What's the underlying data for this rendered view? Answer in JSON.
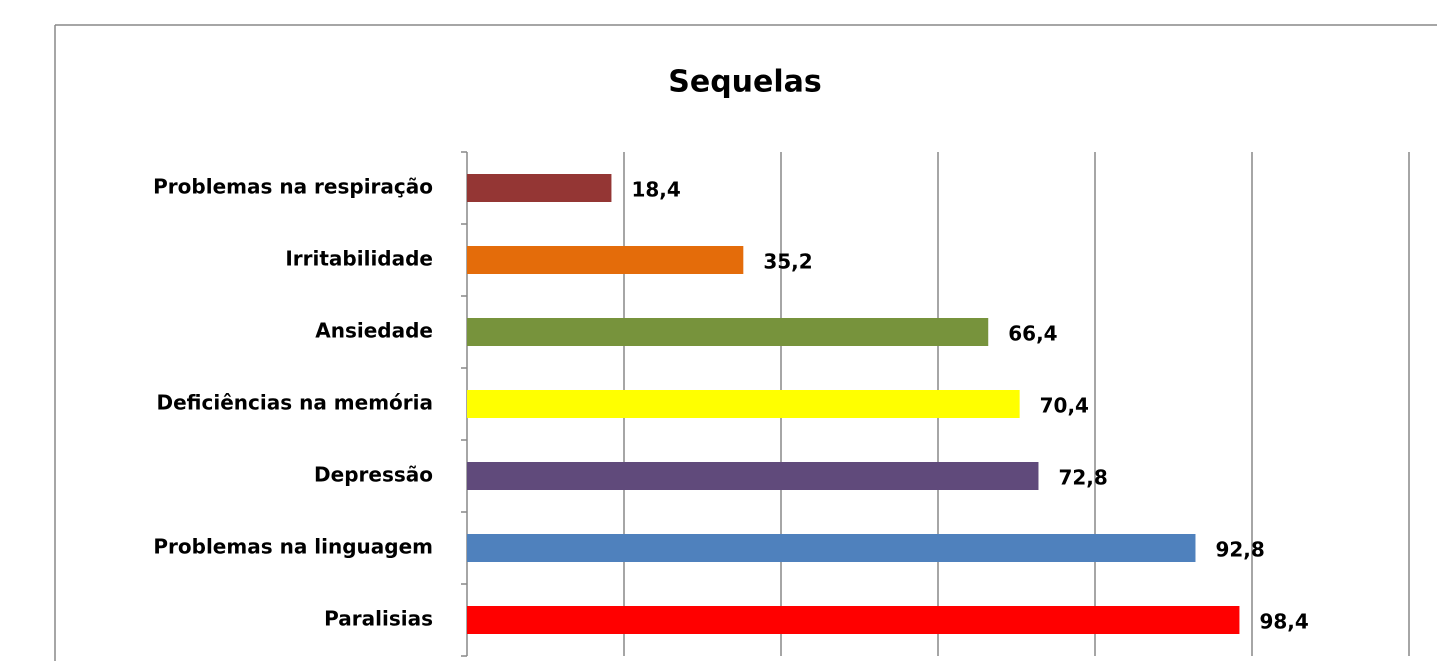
{
  "chart_data": {
    "type": "barh",
    "title": "Sequelas",
    "categories": [
      "Problemas na respiração",
      "Irritabilidade",
      "Ansiedade",
      "Deficiências na memória",
      "Depressão",
      "Problemas na linguagem",
      "Paralisias"
    ],
    "values": [
      18.4,
      35.2,
      66.4,
      70.4,
      72.8,
      92.8,
      98.4
    ],
    "value_labels": [
      "18,4",
      "35,2",
      "66,4",
      "70,4",
      "72,8",
      "92,8",
      "98,4"
    ],
    "colors": [
      "#943634",
      "#e46c0a",
      "#77933c",
      "#ffff00",
      "#604a7b",
      "#4f81bd",
      "#ff0000"
    ],
    "xlim": [
      0,
      120
    ],
    "xticks": [
      0,
      20,
      40,
      60,
      80,
      100,
      120
    ],
    "grid": true
  }
}
